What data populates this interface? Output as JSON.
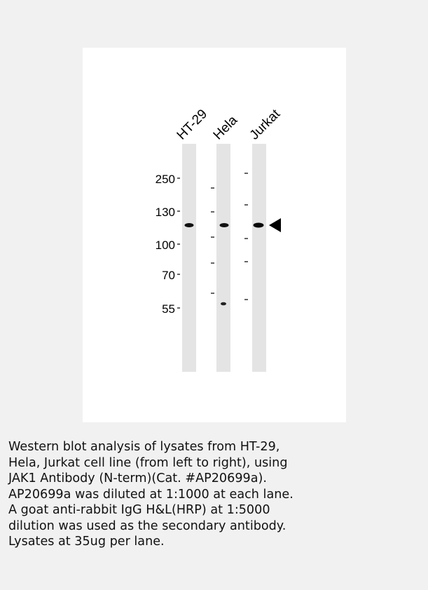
{
  "figure": {
    "lanes": [
      {
        "label": "HT-29"
      },
      {
        "label": "Hela"
      },
      {
        "label": "Jurkat"
      }
    ],
    "mw_markers": [
      "250",
      "130",
      "100",
      "70",
      "55"
    ],
    "colors": {
      "background": "#f1f1f1",
      "panel": "#ffffff",
      "lane": "#e4e4e4",
      "band": "#111111",
      "arrow": "#000000"
    }
  },
  "caption": " Western blot analysis of lysates from HT-29,\nHela, Jurkat cell line (from left to right), using\nJAK1 Antibody (N-term)(Cat. #AP20699a).\nAP20699a was diluted at 1:1000 at each lane.\nA goat anti-rabbit IgG H&L(HRP) at 1:5000\ndilution was used as the secondary antibody.\nLysates at 35ug per lane."
}
